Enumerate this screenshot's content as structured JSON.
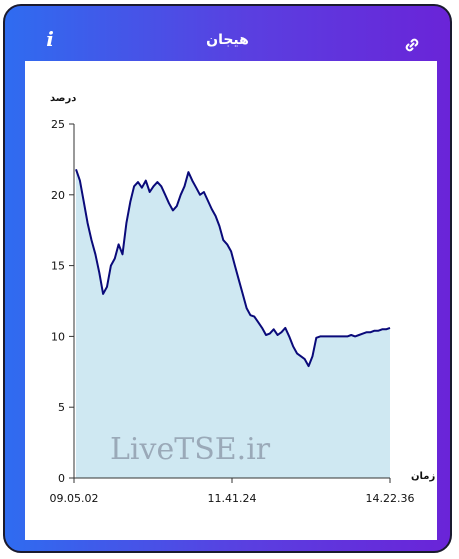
{
  "header": {
    "title": "هیجان",
    "info_label": "i"
  },
  "watermark": "LiveTSE.ir",
  "colors": {
    "line": "#0a0a7a",
    "fill": "#cfe8f2",
    "gradient_start": "#2f6cf0",
    "gradient_end": "#6a24d8"
  },
  "chart_data": {
    "type": "area",
    "title": "",
    "xlabel": "زمان",
    "ylabel": "درصد",
    "ylim": [
      0,
      25
    ],
    "yticks": [
      "0",
      "5",
      "10",
      "15",
      "20",
      "25"
    ],
    "xticks": [
      "09.05.02",
      "11.41.24",
      "14.22.36"
    ],
    "grid": false,
    "series": [
      {
        "values": [
          21.8,
          21.0,
          19.5,
          18.0,
          16.8,
          15.8,
          14.5,
          13.0,
          13.5,
          15.0,
          15.5,
          16.5,
          15.8,
          18.0,
          19.5,
          20.6,
          20.9,
          20.5,
          21.0,
          20.2,
          20.6,
          20.9,
          20.6,
          20.0,
          19.4,
          18.9,
          19.2,
          20.0,
          20.6,
          21.6,
          21.0,
          20.5,
          20.0,
          20.2,
          19.6,
          19.0,
          18.5,
          17.8,
          16.8,
          16.5,
          16.0,
          15.0,
          14.0,
          13.0,
          12.0,
          11.5,
          11.4,
          11.0,
          10.6,
          10.1,
          10.2,
          10.5,
          10.1,
          10.3,
          10.6,
          10.0,
          9.3,
          8.8,
          8.6,
          8.4,
          7.9,
          8.6,
          9.9,
          10.0,
          10.0,
          10.0,
          10.0,
          10.0,
          10.0,
          10.0,
          10.0,
          10.1,
          10.0,
          10.1,
          10.2,
          10.3,
          10.3,
          10.4,
          10.4,
          10.5,
          10.5,
          10.6
        ]
      }
    ]
  }
}
